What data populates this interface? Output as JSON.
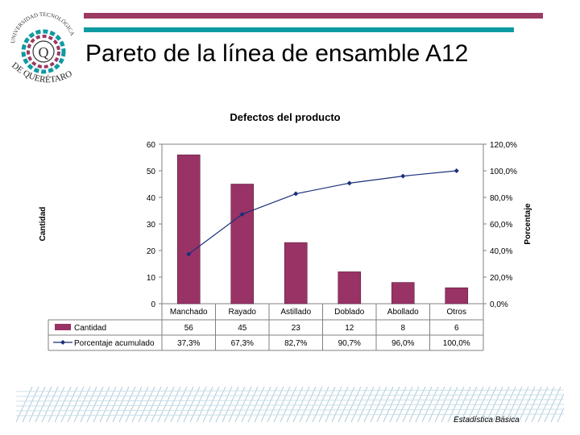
{
  "slide": {
    "title": "Pareto de la línea de ensamble A12",
    "footer": "Estadística Básica",
    "logo_top_text": "UNIVERSIDAD TECNOLÓGICA",
    "logo_bottom_text": "DE QUERÉTARO",
    "logo_letter": "Q"
  },
  "colors": {
    "accent_top": "#9b3a63",
    "accent_bottom": "#0e9aa2",
    "bar": "#993366",
    "line": "#1a2f7a"
  },
  "chart_data": {
    "type": "bar",
    "title": "Defectos del producto",
    "categories": [
      "Manchado",
      "Rayado",
      "Astillado",
      "Doblado",
      "Abollado",
      "Otros"
    ],
    "ylabel": "Cantidad",
    "y2label": "Porcentaje",
    "ylim": [
      0,
      60
    ],
    "y2lim": [
      0,
      120
    ],
    "yticks": [
      "0",
      "10",
      "20",
      "30",
      "40",
      "50",
      "60"
    ],
    "y2ticks": [
      "0,0%",
      "20,0%",
      "40,0%",
      "60,0%",
      "80,0%",
      "100,0%",
      "120,0%"
    ],
    "series": [
      {
        "name": "Cantidad",
        "kind": "bar",
        "values": [
          56,
          45,
          23,
          12,
          8,
          6
        ],
        "labels": [
          "56",
          "45",
          "23",
          "12",
          "8",
          "6"
        ]
      },
      {
        "name": "Porcentaje acumulado",
        "kind": "line",
        "axis": "y2",
        "values": [
          37.3,
          67.3,
          82.7,
          90.7,
          96.0,
          100.0
        ],
        "labels": [
          "37,3%",
          "67,3%",
          "82,7%",
          "90,7%",
          "96,0%",
          "100,0%"
        ]
      }
    ]
  }
}
